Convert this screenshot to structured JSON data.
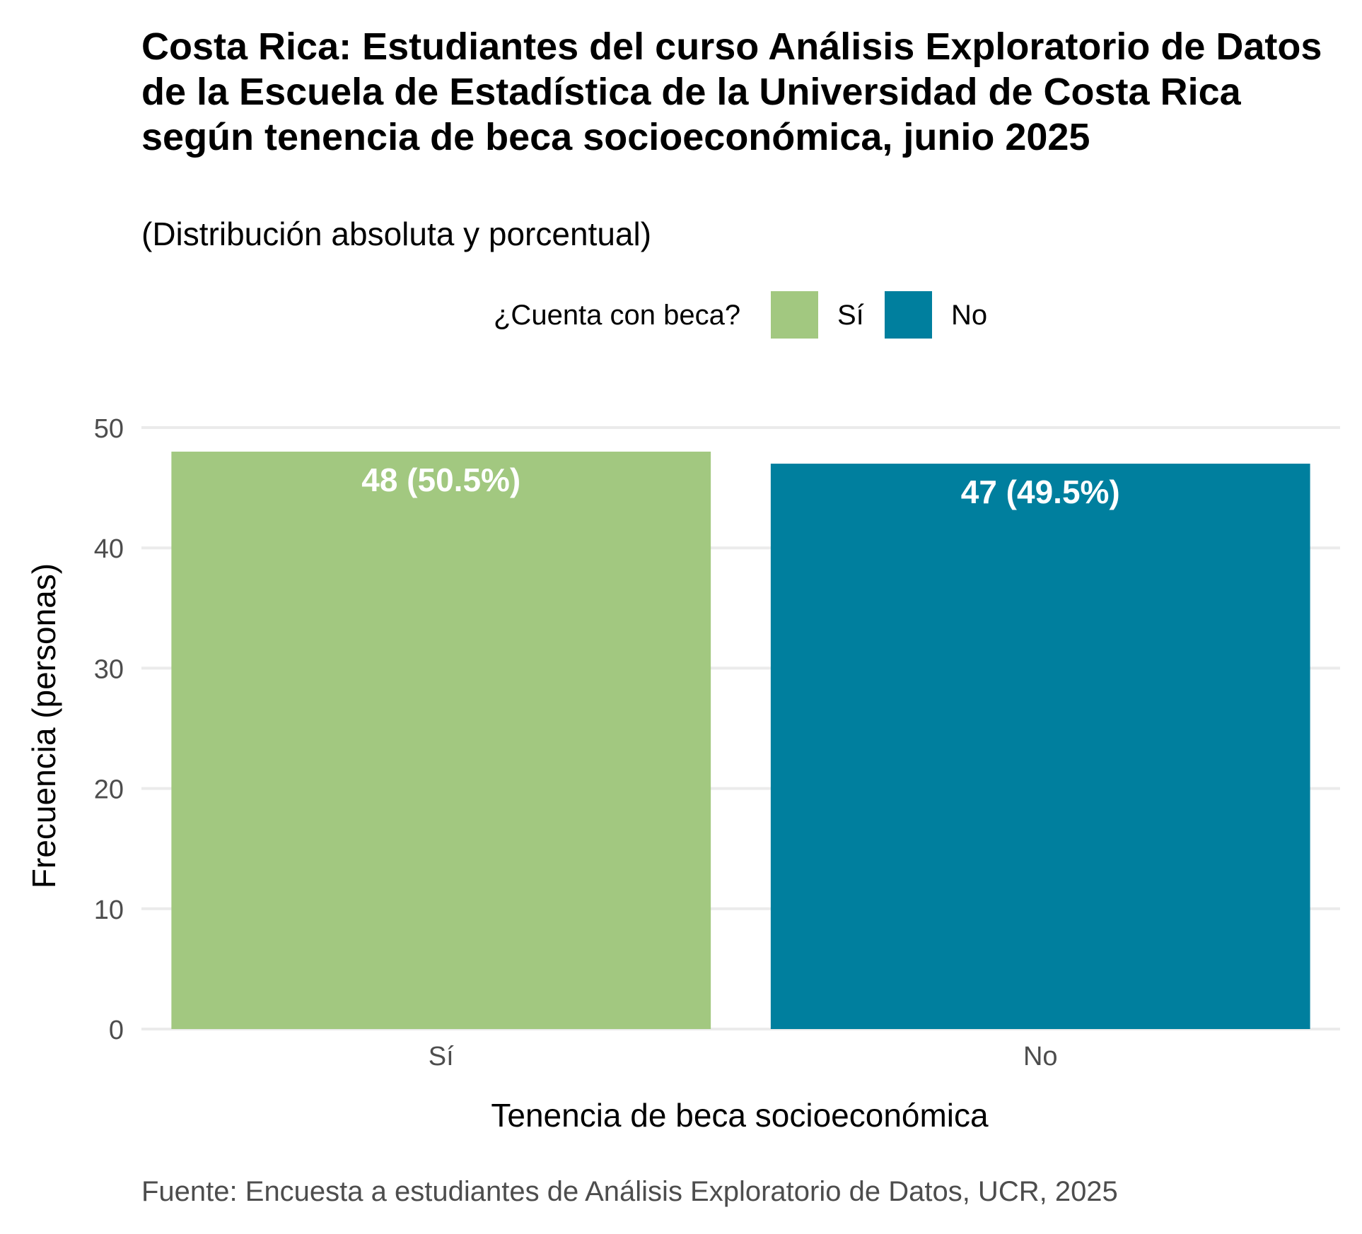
{
  "chart_data": {
    "type": "bar",
    "title": "Costa Rica: Estudiantes del curso Análisis Exploratorio de Datos de la Escuela de Estadística de la Universidad de Costa Rica según tenencia de beca socioeconómica, junio 2025",
    "subtitle": "(Distribución absoluta y porcentual)",
    "xlabel": "Tenencia de beca socioeconómica",
    "ylabel": "Frecuencia (personas)",
    "categories": [
      "Sí",
      "No"
    ],
    "values": [
      48,
      47
    ],
    "data_labels": [
      "48 (50.5%)",
      "47 (49.5%)"
    ],
    "colors": [
      "#a2c880",
      "#007f9e"
    ],
    "ylim": [
      0,
      50
    ],
    "y_ticks": [
      0,
      10,
      20,
      30,
      40,
      50
    ],
    "grid": true,
    "legend": {
      "title": "¿Cuenta con beca?",
      "position": "top",
      "entries": [
        "Sí",
        "No"
      ]
    },
    "caption": "Fuente: Encuesta a estudiantes de Análisis Exploratorio de Datos, UCR, 2025"
  }
}
